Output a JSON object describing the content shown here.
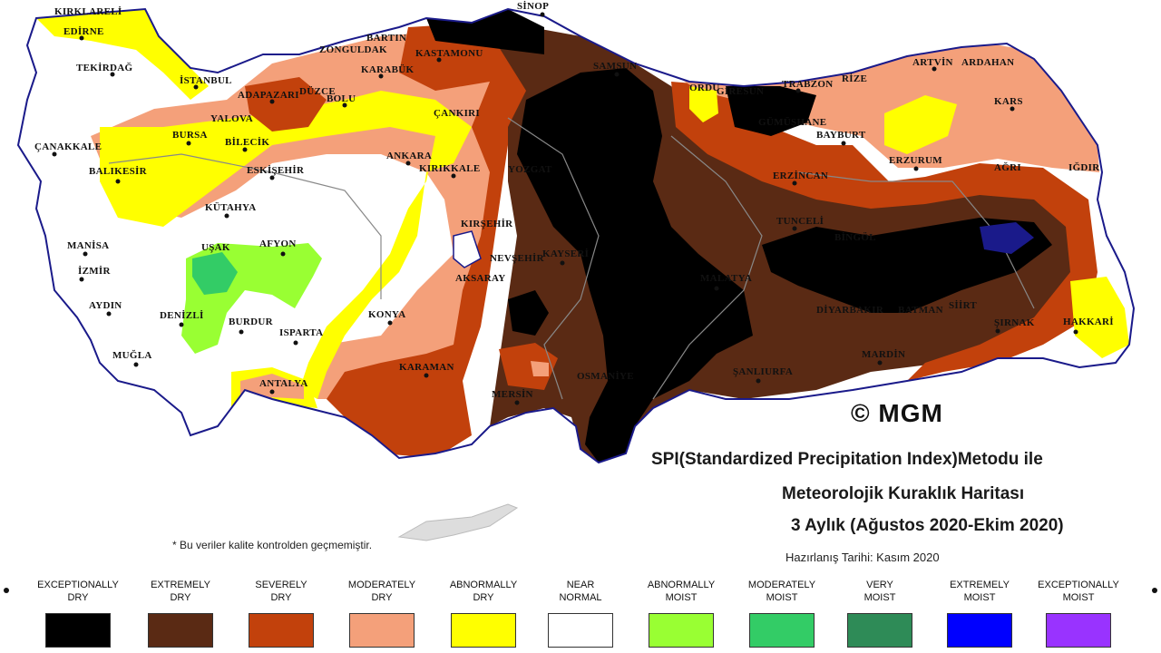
{
  "title": {
    "line1": "SPI(Standardized Precipitation Index)Metodu ile",
    "line2": "Meteorolojik Kuraklık Haritası",
    "line3": "3 Aylık (Ağustos 2020-Ekim 2020)"
  },
  "prepared_date": "Hazırlanış Tarihi: Kasım 2020",
  "footnote": "* Bu veriler kalite kontrolden geçmemiştir.",
  "copyright": "© MGM",
  "legend": [
    {
      "line1": "EXCEPTIONALLY",
      "line2": "DRY",
      "color": "#000000"
    },
    {
      "line1": "EXTREMELY",
      "line2": "DRY",
      "color": "#5a2a14"
    },
    {
      "line1": "SEVERELY",
      "line2": "DRY",
      "color": "#c2410c"
    },
    {
      "line1": "MODERATELY",
      "line2": "DRY",
      "color": "#f4a07a"
    },
    {
      "line1": "ABNORMALLY",
      "line2": "DRY",
      "color": "#ffff00"
    },
    {
      "line1": "NEAR",
      "line2": "NORMAL",
      "color": "#ffffff"
    },
    {
      "line1": "ABNORMALLY",
      "line2": "MOIST",
      "color": "#99ff33"
    },
    {
      "line1": "MODERATELY",
      "line2": "MOIST",
      "color": "#33cc66"
    },
    {
      "line1": "VERY",
      "line2": "MOIST",
      "color": "#2e8b57"
    },
    {
      "line1": "EXTREMELY",
      "line2": "MOIST",
      "color": "#0000ff"
    },
    {
      "line1": "EXCEPTIONALLY",
      "line2": "MOIST",
      "color": "#9933ff"
    }
  ],
  "cities": {
    "kirklareli": "KIRKLARELİ",
    "edirne": "EDİRNE",
    "tekirdag": "TEKİRDAĞ",
    "istanbul": "İSTANBUL",
    "canakkale": "ÇANAKKALE",
    "balikesir": "BALIKESİR",
    "bursa": "BURSA",
    "yalova": "YALOVA",
    "bilecik": "BİLECİK",
    "sakarya": "ADAPAZARI",
    "duzce": "DÜZCE",
    "bolu": "BOLU",
    "zonguldak": "ZONGULDAK",
    "bartin": "BARTIN",
    "karabuk": "KARABÜK",
    "kastamonu": "KASTAMONU",
    "sinop": "SİNOP",
    "samsun": "SAMSUN",
    "ordu": "ORDU",
    "giresun": "GİRESUN",
    "trabzon": "TRABZON",
    "rize": "RİZE",
    "artvin": "ARTVİN",
    "ardahan": "ARDAHAN",
    "kars": "KARS",
    "igdir": "IĞDIR",
    "agri": "AĞRI",
    "erzurum": "ERZURUM",
    "bayburt": "BAYBURT",
    "gumushane": "GÜMÜŞHANE",
    "erzincan": "ERZİNCAN",
    "tunceli": "TUNCELİ",
    "bingol": "BİNGÖL",
    "cankiri": "ÇANKIRI",
    "ankara": "ANKARA",
    "kirikkale": "KIRIKKALE",
    "eskisehir": "ESKİŞEHİR",
    "kutahya": "KÜTAHYA",
    "manisa": "MANİSA",
    "izmir": "İZMİR",
    "aydin": "AYDIN",
    "mugla": "MUĞLA",
    "denizli": "DENİZLİ",
    "usak": "UŞAK",
    "afyon": "AFYON",
    "burdur": "BURDUR",
    "isparta": "ISPARTA",
    "antalya": "ANTALYA",
    "konya": "KONYA",
    "karaman": "KARAMAN",
    "mersin": "MERSİN",
    "aksaray": "AKSARAY",
    "nevsehir": "NEVŞEHİR",
    "kirsehir": "KIRŞEHİR",
    "kayseri": "KAYSERİ",
    "osmaniye": "OSMANİYE",
    "malatya": "MALATYA",
    "siirt": "SİİRT",
    "batman": "BATMAN",
    "mardin": "MARDİN",
    "sanliurfa": "ŞANLIURFA",
    "sirnak": "ŞIRNAK",
    "hakkari": "HAKKARİ",
    "yozgat": "YOZGAT",
    "diyarbakir": "DİYARBAKIR"
  }
}
